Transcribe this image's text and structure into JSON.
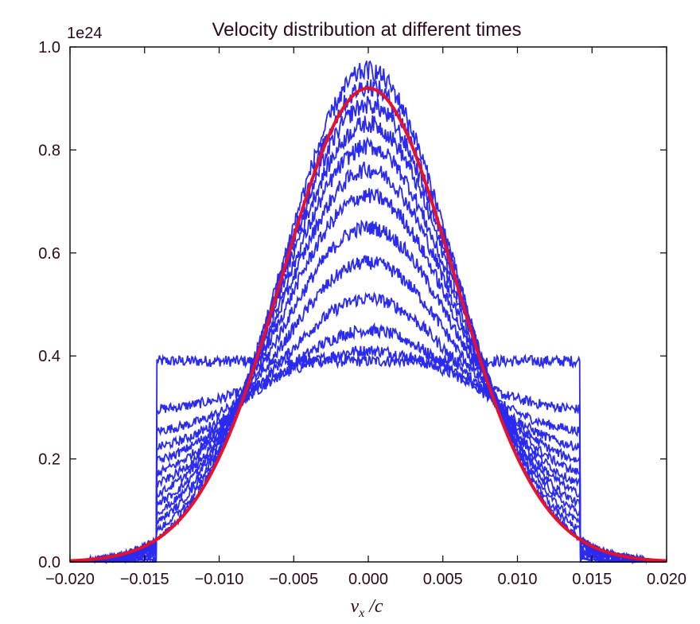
{
  "chart_data": {
    "type": "line",
    "title": "Velocity distribution at different times",
    "xlabel": "v_x / c",
    "ylabel": "",
    "y_offset_label": "1e24",
    "xlim": [
      -0.02,
      0.02
    ],
    "ylim": [
      0.0,
      1.0
    ],
    "xticks": [
      "-0.020",
      "-0.015",
      "-0.010",
      "-0.005",
      "0.000",
      "0.005",
      "0.010",
      "0.015",
      "0.020"
    ],
    "yticks": [
      "0.0",
      "0.2",
      "0.4",
      "0.6",
      "0.8",
      "1.0"
    ],
    "grid": false,
    "legend": "none",
    "colors": {
      "evolving": "#2a2af0",
      "equilibrium": "#e8102a",
      "text": "#2b0a1a",
      "axes": "#000000"
    },
    "series": [
      {
        "kind": "evolving",
        "edge": 0.0142,
        "plateau": 0.39,
        "peak": 0.39
      },
      {
        "kind": "evolving",
        "edge": 0.0142,
        "plateau": 0.39,
        "peak": 0.47
      },
      {
        "kind": "evolving",
        "edge": 0.0142,
        "plateau": 0.39,
        "peak": 0.55
      },
      {
        "kind": "evolving",
        "edge": 0.0142,
        "plateau": 0.39,
        "peak": 0.65
      },
      {
        "kind": "evolving",
        "edge": 0.0142,
        "plateau": 0.39,
        "peak": 0.74
      },
      {
        "kind": "evolving",
        "edge": 0.0142,
        "plateau": 0.39,
        "peak": 0.81
      },
      {
        "kind": "evolving",
        "edge": 0.0142,
        "plateau": 0.39,
        "peak": 0.86
      },
      {
        "kind": "evolving",
        "edge": 0.0142,
        "plateau": 0.39,
        "peak": 0.89
      },
      {
        "kind": "evolving",
        "edge": 0.0142,
        "plateau": 0.39,
        "peak": 0.91
      },
      {
        "kind": "evolving",
        "edge": 0.0142,
        "plateau": 0.39,
        "peak": 0.93
      },
      {
        "kind": "evolving",
        "edge": 0.0142,
        "plateau": 0.39,
        "peak": 0.94
      },
      {
        "kind": "evolving",
        "edge": 0.0142,
        "plateau": 0.39,
        "peak": 0.95
      },
      {
        "kind": "evolving",
        "edge": 0.0142,
        "plateau": 0.39,
        "peak": 0.955
      },
      {
        "kind": "equilibrium",
        "shape": "gaussian",
        "peak": 0.92,
        "sigma": 0.00575
      }
    ]
  }
}
